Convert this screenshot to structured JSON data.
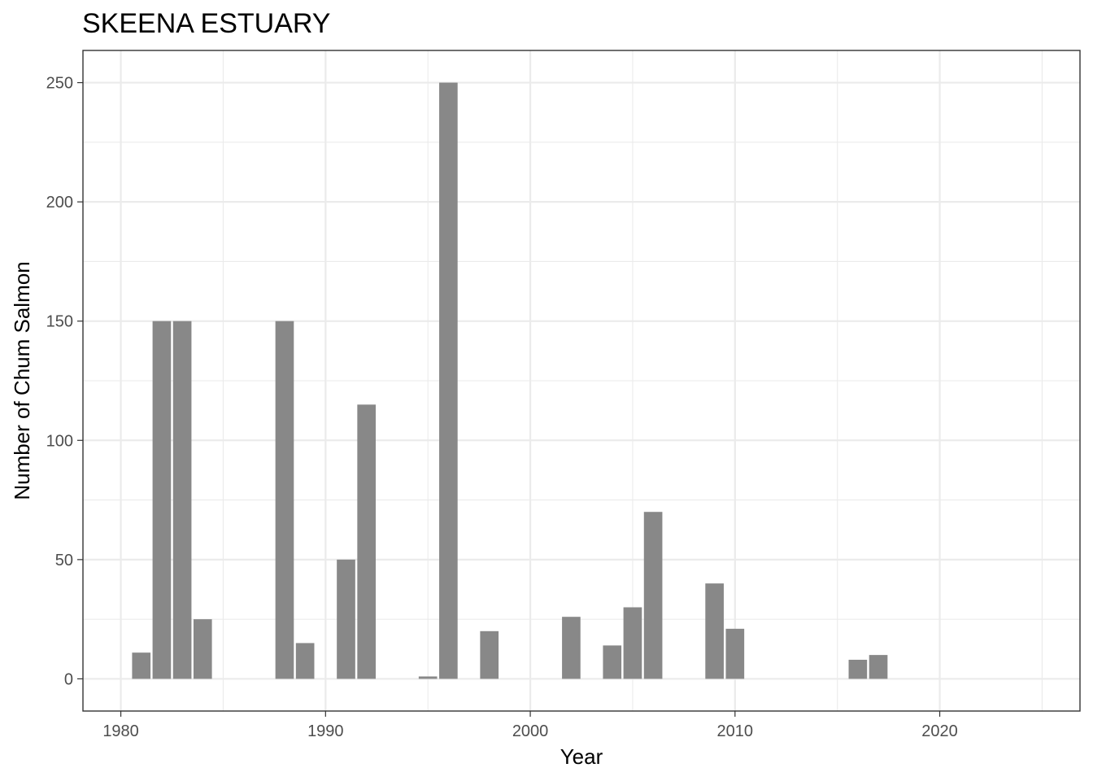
{
  "chart_data": {
    "type": "bar",
    "title": "SKEENA ESTUARY",
    "xlabel": "Year",
    "ylabel": "Number of Chum Salmon",
    "xlim": [
      1978.15,
      2026.85
    ],
    "ylim": [
      -13.5,
      263.5
    ],
    "x_ticks": [
      1980,
      1990,
      2000,
      2010,
      2020
    ],
    "x_tick_labels": [
      "1980",
      "1990",
      "2000",
      "2010",
      "2020"
    ],
    "y_ticks": [
      0,
      50,
      100,
      150,
      200,
      250
    ],
    "y_tick_labels": [
      "0",
      "50",
      "100",
      "150",
      "200",
      "250"
    ],
    "grid": true,
    "bar_color": "#888888",
    "x": [
      1981,
      1982,
      1983,
      1984,
      1988,
      1989,
      1991,
      1992,
      1995,
      1996,
      1998,
      2002,
      2004,
      2005,
      2006,
      2009,
      2010,
      2016,
      2017
    ],
    "values": [
      11,
      150,
      150,
      25,
      150,
      15,
      50,
      115,
      1,
      250,
      20,
      26,
      14,
      30,
      70,
      40,
      21,
      8,
      10
    ]
  }
}
